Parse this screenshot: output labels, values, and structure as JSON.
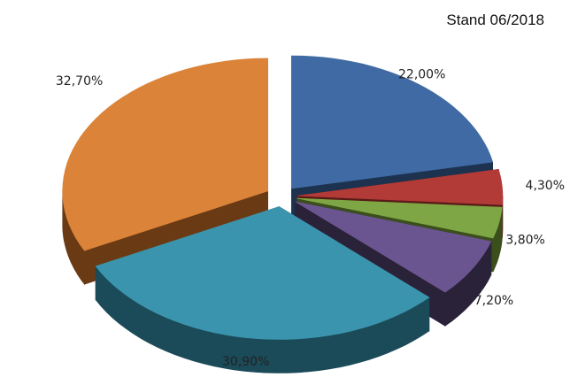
{
  "header": {
    "stand": "Stand 06/2018"
  },
  "chart_data": {
    "type": "pie",
    "style": "3d-exploded",
    "start_angle_deg": 90,
    "direction": "clockwise",
    "slices": [
      {
        "label": "22,00%",
        "value": 22.0,
        "color": "#3F6AA3",
        "dark": "#1C324F"
      },
      {
        "label": "4,30%",
        "value": 4.3,
        "color": "#B23B37",
        "dark": "#5A1A18"
      },
      {
        "label": "3,80%",
        "value": 3.8,
        "color": "#7FA645",
        "dark": "#3A4F1C"
      },
      {
        "label": "7,20%",
        "value": 7.2,
        "color": "#6B5591",
        "dark": "#2A2238"
      },
      {
        "label": "30,90%",
        "value": 30.9,
        "color": "#3B94AD",
        "dark": "#1B4A58"
      },
      {
        "label": "32,70%",
        "value": 32.7,
        "color": "#DB8338",
        "dark": "#6A3A14"
      }
    ]
  }
}
